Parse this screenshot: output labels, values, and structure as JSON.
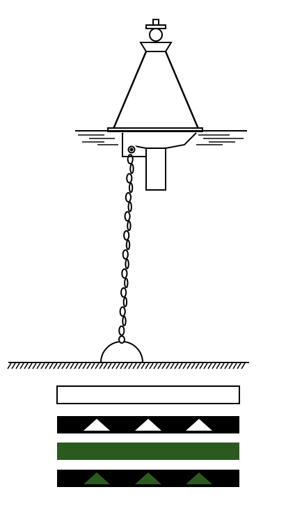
{
  "diagram": {
    "subject": "mooring-buoy",
    "colors": {
      "line": "#000000",
      "background": "#ffffff",
      "green": "#2b5a1f",
      "white": "#ffffff",
      "black": "#000000"
    },
    "legend_bands": [
      {
        "kind": "plain",
        "fill": "#ffffff",
        "outlined": true
      },
      {
        "kind": "triangles",
        "fill": "#000000",
        "triangle_fill": "#ffffff",
        "triangle_count": 3
      },
      {
        "kind": "plain",
        "fill": "#2b5a1f",
        "outlined": false
      },
      {
        "kind": "triangles",
        "fill": "#000000",
        "triangle_fill": "#2b5a1f",
        "triangle_count": 3
      }
    ]
  }
}
